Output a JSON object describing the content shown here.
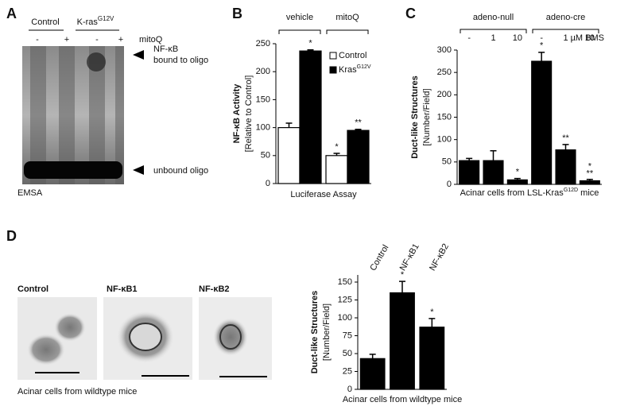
{
  "panel_a": {
    "label": "A",
    "groups": [
      {
        "text": "Control"
      },
      {
        "text": "K-ras",
        "sup": "G12V"
      }
    ],
    "lanes": [
      "-",
      "+",
      "-",
      "+"
    ],
    "treatment": "mitoQ",
    "annotations": [
      {
        "lines": [
          "NF-κB",
          "bound to oligo"
        ]
      },
      {
        "lines": [
          "unbound oligo"
        ]
      }
    ],
    "caption": "EMSA"
  },
  "panel_d_images": {
    "label": "D",
    "images": [
      "Control",
      "NF-κB1",
      "NF-κB2"
    ],
    "caption": "Acinar cells from wildtype mice"
  },
  "chart_data": [
    {
      "type": "bar",
      "label": "B",
      "groups": [
        "vehicle",
        "mitoQ"
      ],
      "ylabel": "NF-κB Activity",
      "ylabel_sub": "[Relative to Control]",
      "xlabel": "Luciferase Assay",
      "ylim": [
        0,
        250
      ],
      "yticks": [
        0,
        50,
        100,
        150,
        200,
        250
      ],
      "series": [
        {
          "name": "Control",
          "color": "#ffffff",
          "values": [
            100,
            50
          ],
          "errors": [
            8,
            4
          ],
          "significance": [
            null,
            "*"
          ]
        },
        {
          "name": "Kras",
          "name_sup": "G12V",
          "color": "#000000",
          "values": [
            237,
            95
          ],
          "errors": [
            2,
            2
          ],
          "significance": [
            "*",
            "**"
          ]
        }
      ]
    },
    {
      "type": "bar",
      "label": "C",
      "groups": [
        "adeno-null",
        "adeno-cre"
      ],
      "categories": [
        "-",
        "1",
        "10",
        "-",
        "1",
        "10"
      ],
      "unit": "µM BMS",
      "ylabel": "Duct-like Structures",
      "ylabel_sub": "[Number/Field]",
      "xlabel": {
        "pre": "Acinar cells from LSL-Kras",
        "sup": "G12D",
        "post": " mice"
      },
      "ylim": [
        0,
        300
      ],
      "yticks": [
        0,
        50,
        100,
        150,
        200,
        250,
        300
      ],
      "series": [
        {
          "color": "#000000",
          "values": [
            53,
            53,
            10,
            275,
            77,
            8
          ],
          "errors": [
            5,
            22,
            3,
            20,
            12,
            3
          ],
          "significance": [
            null,
            null,
            "*",
            "*",
            "**",
            [
              "**",
              "*"
            ]
          ]
        }
      ]
    },
    {
      "type": "bar",
      "categories": [
        "Control",
        "NF-κB1",
        "NF-κB2"
      ],
      "ylabel": "Duct-like Structures",
      "ylabel_sub": "[Number/Field]",
      "xlabel": "Acinar cells from wildtype mice",
      "ylim": [
        0,
        160
      ],
      "yticks": [
        0,
        25,
        50,
        75,
        100,
        125,
        150
      ],
      "series": [
        {
          "color": "#000000",
          "values": [
            43,
            135,
            87
          ],
          "errors": [
            6,
            16,
            12
          ],
          "significance": [
            null,
            "*",
            "*"
          ]
        }
      ]
    }
  ]
}
